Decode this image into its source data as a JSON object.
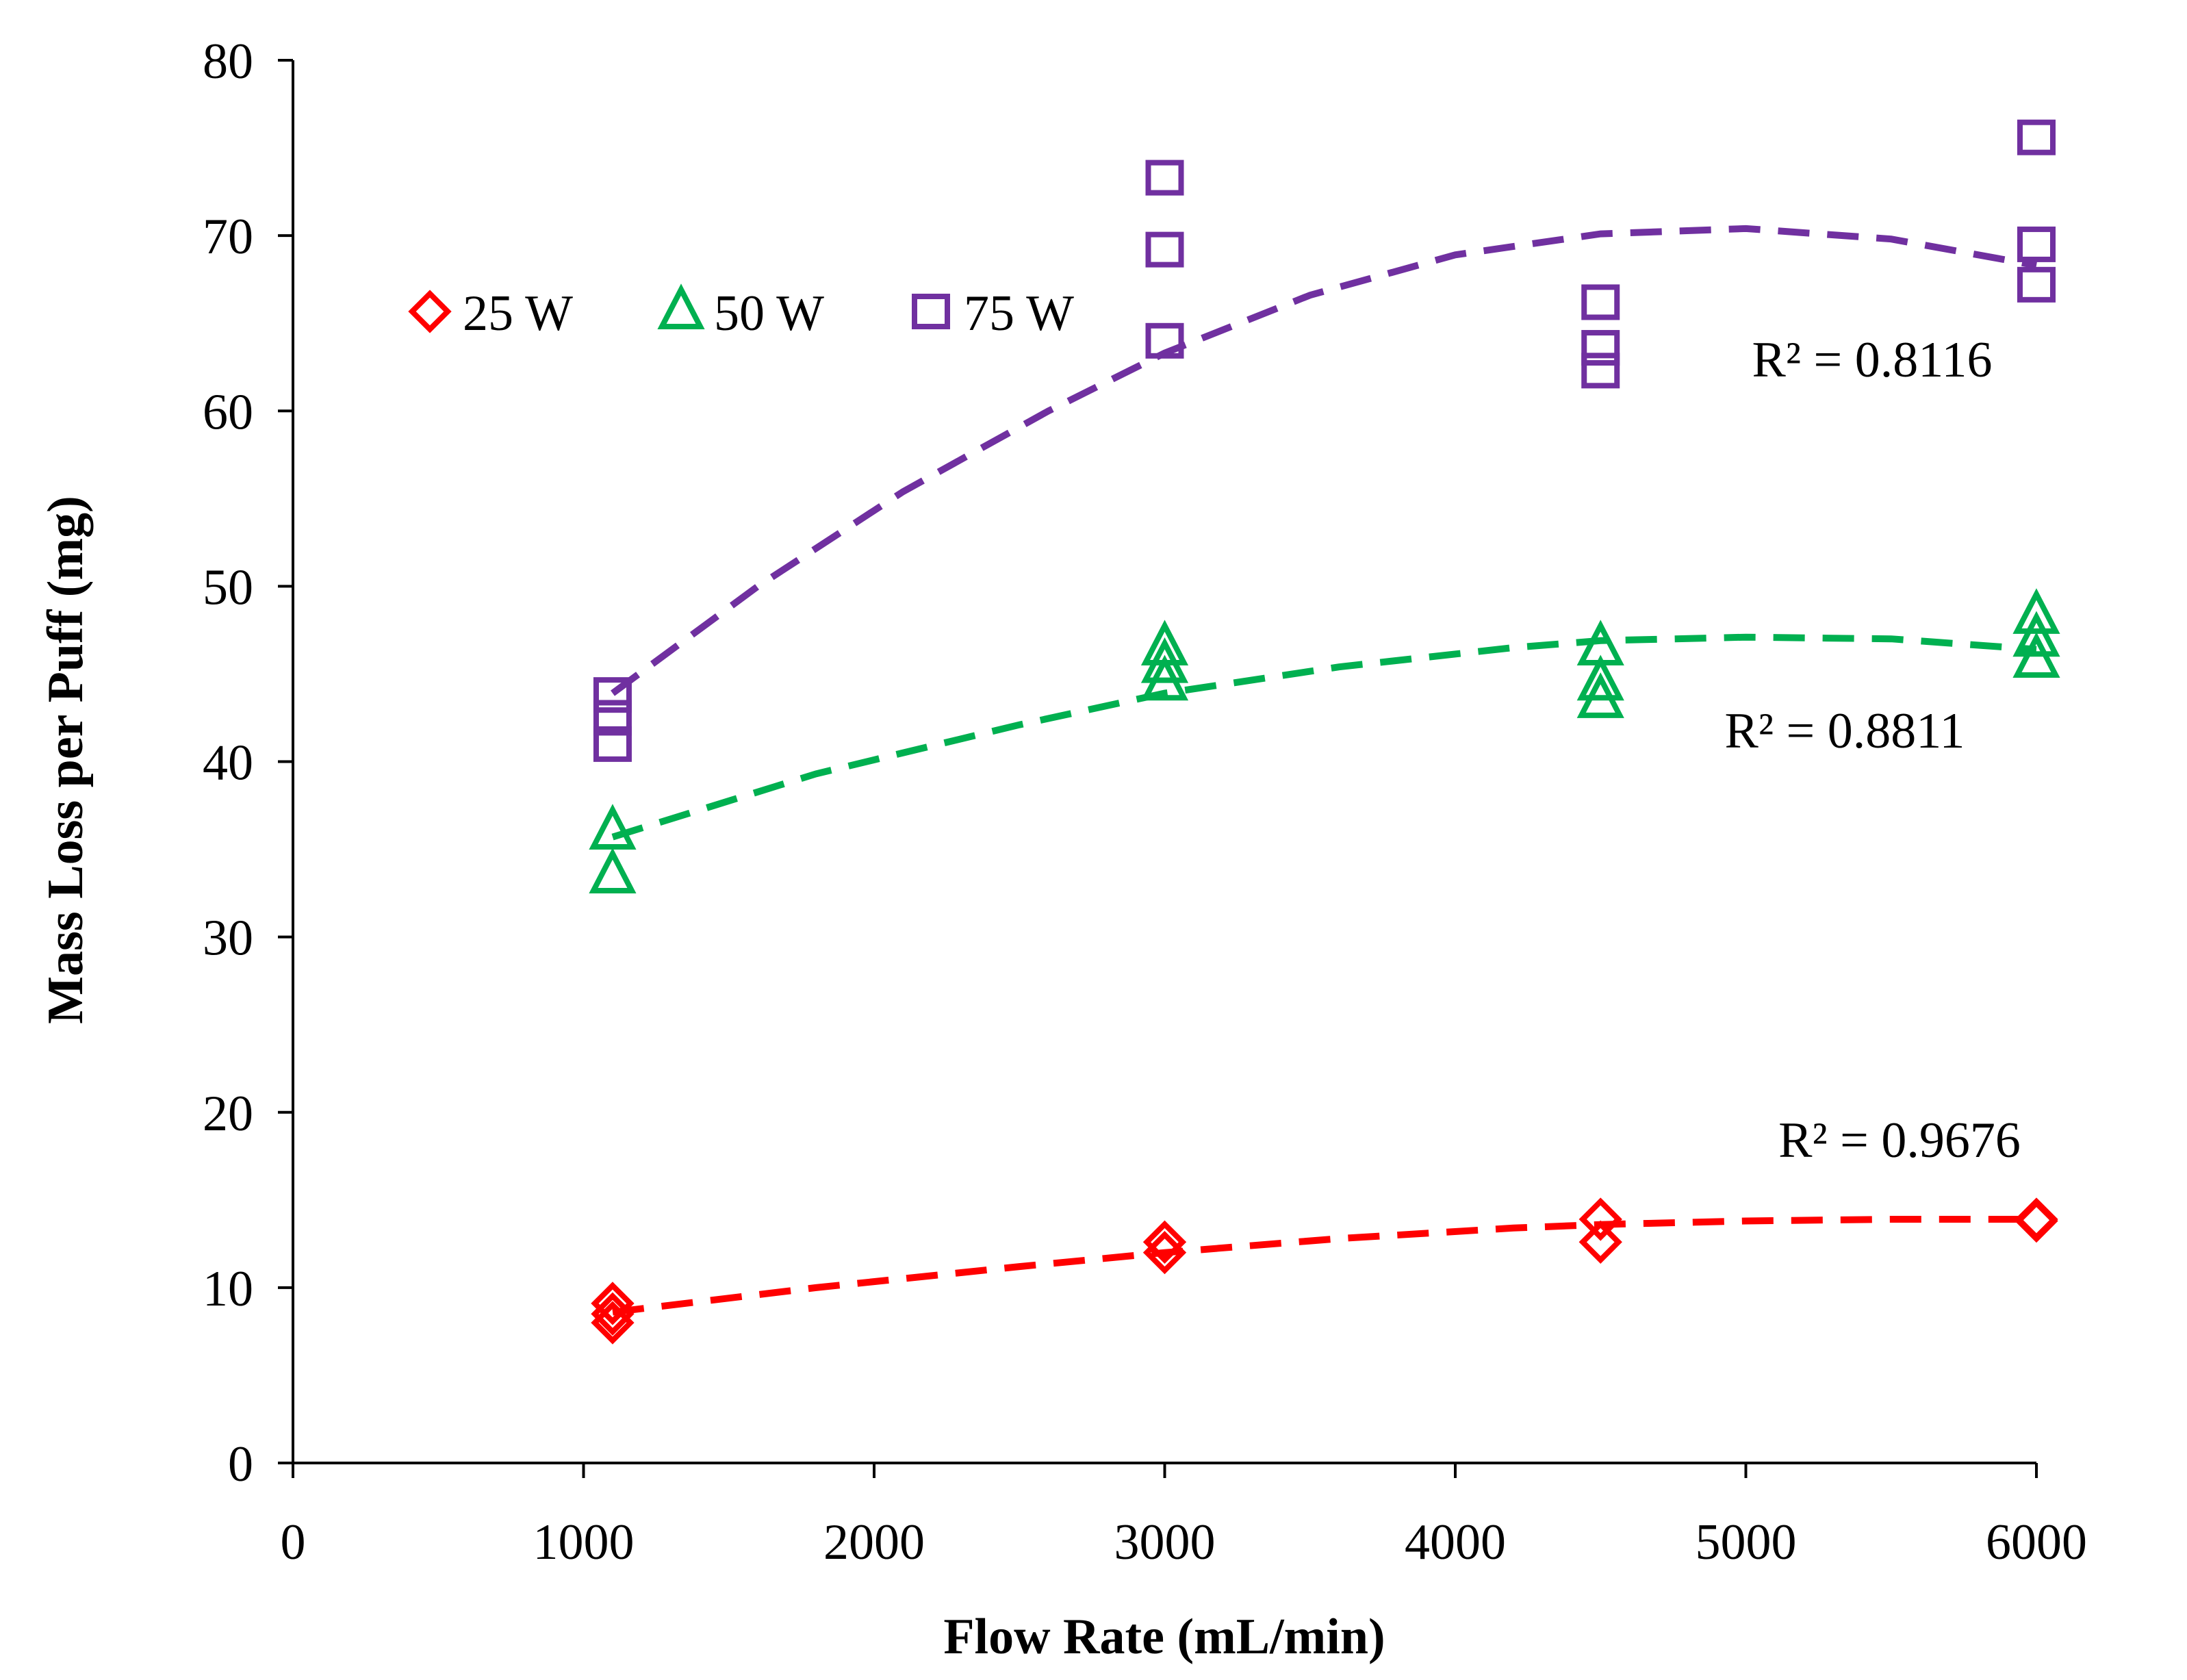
{
  "chart_data": {
    "type": "scatter",
    "title": "",
    "xlabel": "Flow Rate (mL/min)",
    "ylabel": "Mass Loss per Puff (mg)",
    "xlim": [
      0,
      6000
    ],
    "ylim": [
      0,
      80
    ],
    "x_ticks": [
      "0",
      "1000",
      "2000",
      "3000",
      "4000",
      "5000",
      "6000"
    ],
    "y_ticks": [
      "0",
      "10",
      "20",
      "30",
      "40",
      "50",
      "60",
      "70",
      "80"
    ],
    "grid": false,
    "legend_position": "top-left",
    "series": [
      {
        "name": "25 W",
        "color": "#ff0000",
        "marker": "diamond",
        "points": [
          [
            1100,
            8.0
          ],
          [
            1100,
            8.5
          ],
          [
            1100,
            9.1
          ],
          [
            3000,
            12.0
          ],
          [
            3000,
            12.6
          ],
          [
            4500,
            12.6
          ],
          [
            4500,
            13.9
          ],
          [
            6000,
            13.9
          ],
          [
            6000,
            13.8
          ]
        ],
        "trend": {
          "type": "polynomial-2",
          "r2_label": "R² = 0.9676",
          "x": [
            1100,
            1800,
            2500,
            3000,
            3600,
            4200,
            4500,
            5000,
            5500,
            6000
          ],
          "y": [
            8.6,
            10.0,
            11.2,
            12.0,
            12.8,
            13.4,
            13.6,
            13.8,
            13.9,
            13.9
          ]
        }
      },
      {
        "name": "50 W",
        "color": "#00b050",
        "marker": "triangle",
        "points": [
          [
            1100,
            33.5
          ],
          [
            1100,
            36.0
          ],
          [
            3000,
            44.5
          ],
          [
            3000,
            45.5
          ],
          [
            3000,
            46.5
          ],
          [
            4500,
            43.5
          ],
          [
            4500,
            44.5
          ],
          [
            4500,
            46.5
          ],
          [
            6000,
            45.8
          ],
          [
            6000,
            47.0
          ],
          [
            6000,
            48.3
          ]
        ],
        "trend": {
          "type": "polynomial-2",
          "r2_label": "R² = 0.8811",
          "x": [
            1100,
            1800,
            2500,
            3000,
            3600,
            4200,
            4500,
            5000,
            5500,
            6000
          ],
          "y": [
            35.7,
            39.3,
            42.1,
            43.9,
            45.4,
            46.5,
            46.9,
            47.1,
            47.0,
            46.4
          ]
        }
      },
      {
        "name": "75 W",
        "color": "#7030a0",
        "marker": "square",
        "points": [
          [
            1100,
            41.0
          ],
          [
            1100,
            42.5
          ],
          [
            1100,
            43.8
          ],
          [
            3000,
            64.0
          ],
          [
            3000,
            69.2
          ],
          [
            3000,
            73.3
          ],
          [
            4500,
            62.3
          ],
          [
            4500,
            63.6
          ],
          [
            4500,
            66.2
          ],
          [
            6000,
            67.2
          ],
          [
            6000,
            69.5
          ],
          [
            6000,
            75.6
          ]
        ],
        "trend": {
          "type": "polynomial-2",
          "r2_label": "R² = 0.8116",
          "x": [
            1100,
            1600,
            2100,
            2600,
            3000,
            3500,
            4000,
            4500,
            5000,
            5500,
            6000
          ],
          "y": [
            43.9,
            50.0,
            55.4,
            60.0,
            63.3,
            66.6,
            68.9,
            70.1,
            70.4,
            69.8,
            68.3
          ]
        }
      }
    ]
  }
}
